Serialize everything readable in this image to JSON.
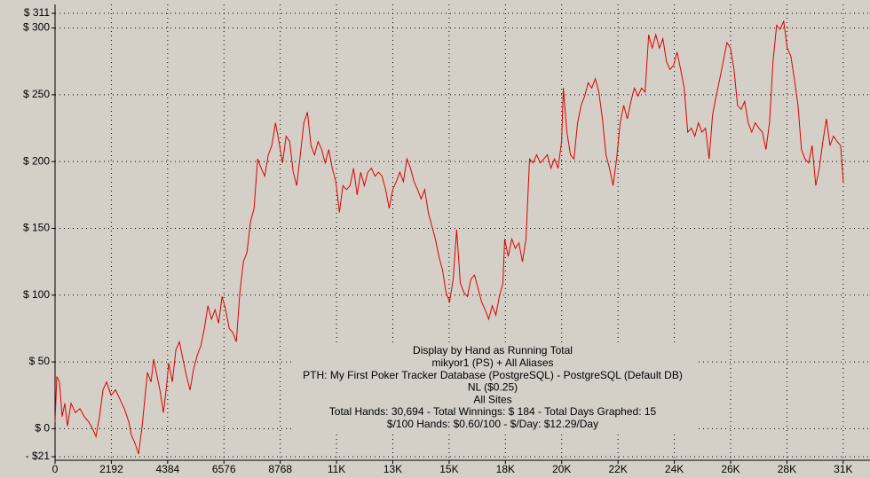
{
  "chart_data": {
    "type": "line",
    "xlim": [
      0,
      30694
    ],
    "ylim": [
      -21,
      311
    ],
    "grid": true,
    "xticks": [
      0,
      2192,
      4384,
      6576,
      8768,
      {
        "value": 10960,
        "label": "11K"
      },
      {
        "value": 13152,
        "label": "13K"
      },
      {
        "value": 15344,
        "label": "15K"
      },
      {
        "value": 17536,
        "label": "18K"
      },
      {
        "value": 19728,
        "label": "20K"
      },
      {
        "value": 21920,
        "label": "22K"
      },
      {
        "value": 24112,
        "label": "24K"
      },
      {
        "value": 26304,
        "label": "26K"
      },
      {
        "value": 28496,
        "label": "28K"
      },
      {
        "value": 30688,
        "label": "31K"
      }
    ],
    "yticks": [
      {
        "value": -21,
        "label": "- $21"
      },
      {
        "value": 0,
        "label": "$ 0"
      },
      {
        "value": 50,
        "label": "$ 50"
      },
      {
        "value": 100,
        "label": "$ 100"
      },
      {
        "value": 150,
        "label": "$ 150"
      },
      {
        "value": 200,
        "label": "$ 200"
      },
      {
        "value": 250,
        "label": "$ 250"
      },
      {
        "value": 300,
        "label": "$ 300"
      },
      {
        "value": 311,
        "label": "$ 311"
      }
    ],
    "info_lines": [
      "Display by Hand as Running Total",
      "mikyor1 (PS) + All Aliases",
      "PTH: My First Poker Tracker Database (PostgreSQL) - PostgreSQL (Default DB)",
      "NL ($0.25)",
      "All Sites",
      "Total Hands: 30,694 - Total Winnings: $ 184 - Total Days Graphed: 15",
      "$/100 Hands: $0.60/100 - $/Day: $12.29/Day"
    ],
    "x": [
      0,
      69,
      173,
      277,
      381,
      484,
      623,
      796,
      969,
      1142,
      1315,
      1488,
      1592,
      1730,
      1868,
      2007,
      2180,
      2353,
      2526,
      2699,
      2872,
      2976,
      3114,
      3252,
      3391,
      3495,
      3598,
      3737,
      3841,
      3944,
      4083,
      4221,
      4325,
      4429,
      4567,
      4706,
      4844,
      4982,
      5121,
      5259,
      5398,
      5536,
      5674,
      5813,
      5951,
      6090,
      6228,
      6366,
      6505,
      6643,
      6782,
      6920,
      7058,
      7197,
      7335,
      7474,
      7612,
      7750,
      7889,
      8027,
      8166,
      8304,
      8442,
      8581,
      8719,
      8858,
      8996,
      9134,
      9273,
      9411,
      9550,
      9688,
      9826,
      9965,
      10103,
      10242,
      10380,
      10518,
      10657,
      10795,
      10934,
      11072,
      11210,
      11349,
      11487,
      11626,
      11764,
      11902,
      12041,
      12179,
      12318,
      12456,
      12594,
      12733,
      12871,
      13010,
      13148,
      13286,
      13425,
      13563,
      13702,
      13840,
      13978,
      14117,
      14255,
      14394,
      14532,
      14670,
      14809,
      14947,
      15086,
      15224,
      15362,
      15501,
      15639,
      15778,
      15916,
      16054,
      16193,
      16331,
      16470,
      16608,
      16746,
      16885,
      17023,
      17162,
      17300,
      17438,
      17508,
      17646,
      17784,
      17923,
      18061,
      18200,
      18338,
      18476,
      18615,
      18753,
      18892,
      19030,
      19168,
      19307,
      19445,
      19584,
      19722,
      19791,
      19930,
      20068,
      20206,
      20345,
      20483,
      20622,
      20760,
      20898,
      21037,
      21175,
      21314,
      21452,
      21590,
      21729,
      21867,
      22006,
      22144,
      22282,
      22421,
      22559,
      22698,
      22836,
      22974,
      23113,
      23251,
      23390,
      23528,
      23666,
      23805,
      23943,
      24082,
      24220,
      24358,
      24497,
      24635,
      24774,
      24912,
      25050,
      25189,
      25327,
      25466,
      25604,
      25742,
      25881,
      26019,
      26158,
      26296,
      26434,
      26573,
      26711,
      26850,
      26988,
      27126,
      27265,
      27403,
      27542,
      27680,
      27818,
      27957,
      28095,
      28234,
      28372,
      28510,
      28649,
      28787,
      28926,
      29064,
      29202,
      29341,
      29479,
      29618,
      29756,
      29894,
      30033,
      30171,
      30310,
      30448,
      30586,
      30694
    ],
    "series": [
      {
        "color": "#dd0000",
        "values": [
          5,
          39,
          35,
          9,
          19,
          2,
          19,
          12,
          15,
          9,
          5,
          -1,
          -6,
          9,
          29,
          35,
          25,
          29,
          22,
          15,
          5,
          -5,
          -11,
          -19,
          2,
          22,
          42,
          35,
          52,
          42,
          29,
          12,
          29,
          49,
          35,
          59,
          65,
          52,
          39,
          29,
          45,
          55,
          62,
          75,
          92,
          82,
          89,
          79,
          99,
          89,
          75,
          72,
          65,
          102,
          125,
          132,
          155,
          165,
          202,
          195,
          189,
          205,
          212,
          229,
          215,
          199,
          219,
          215,
          192,
          182,
          205,
          229,
          237,
          212,
          205,
          215,
          209,
          199,
          209,
          195,
          185,
          162,
          182,
          179,
          182,
          195,
          175,
          192,
          182,
          192,
          195,
          189,
          192,
          189,
          179,
          165,
          179,
          185,
          192,
          185,
          202,
          195,
          185,
          179,
          172,
          179,
          162,
          152,
          142,
          129,
          119,
          102,
          95,
          112,
          149,
          109,
          102,
          99,
          112,
          115,
          105,
          95,
          89,
          82,
          92,
          85,
          99,
          109,
          142,
          129,
          142,
          135,
          139,
          125,
          142,
          202,
          199,
          205,
          199,
          202,
          205,
          195,
          202,
          195,
          215,
          255,
          222,
          205,
          202,
          229,
          242,
          249,
          259,
          255,
          262,
          252,
          232,
          205,
          195,
          182,
          202,
          229,
          242,
          232,
          245,
          255,
          249,
          255,
          252,
          295,
          285,
          295,
          285,
          292,
          275,
          269,
          272,
          282,
          269,
          255,
          222,
          225,
          219,
          229,
          222,
          225,
          202,
          235,
          249,
          262,
          275,
          289,
          285,
          269,
          242,
          239,
          245,
          229,
          222,
          229,
          225,
          222,
          209,
          229,
          275,
          302,
          299,
          305,
          285,
          279,
          262,
          242,
          209,
          202,
          199,
          212,
          182,
          195,
          215,
          232,
          212,
          219,
          215,
          212,
          184
        ]
      }
    ]
  }
}
